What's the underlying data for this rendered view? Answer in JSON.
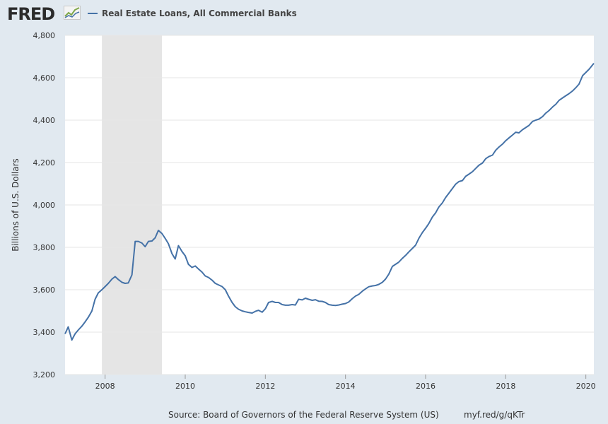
{
  "header": {
    "logo_text": "FRED",
    "logo_icon": "line-graph-icon",
    "series_title": "Real Estate Loans, All Commercial Banks"
  },
  "colors": {
    "line": "#4572a7",
    "recession": "#e5e5e5",
    "background": "#e1e9f0",
    "plot": "#ffffff",
    "grid": "#e6e6e6"
  },
  "footer": {
    "source": "Source: Board of Governors of the Federal Reserve System (US)",
    "shortlink": "myf.red/g/qKTr"
  },
  "chart_data": {
    "type": "line",
    "title": "Real Estate Loans, All Commercial Banks",
    "xlabel": "",
    "ylabel": "Billions of U.S. Dollars",
    "xlim": [
      2007.0,
      2020.2
    ],
    "ylim": [
      3200,
      4800
    ],
    "xticks": [
      2008,
      2010,
      2012,
      2014,
      2016,
      2018,
      2020
    ],
    "xtick_labels": [
      "2008",
      "2010",
      "2012",
      "2014",
      "2016",
      "2018",
      "2020"
    ],
    "yticks": [
      3200,
      3400,
      3600,
      3800,
      4000,
      4200,
      4400,
      4600,
      4800
    ],
    "ytick_labels": [
      "3,200",
      "3,400",
      "3,600",
      "3,800",
      "4,000",
      "4,200",
      "4,400",
      "4,600",
      "4,800"
    ],
    "grid": true,
    "legend": "top-left",
    "recessions": [
      [
        2007.92,
        2009.42
      ]
    ],
    "series": [
      {
        "name": "Real Estate Loans, All Commercial Banks",
        "x": [
          2007.0,
          2007.08,
          2007.17,
          2007.25,
          2007.33,
          2007.42,
          2007.5,
          2007.58,
          2007.67,
          2007.75,
          2007.83,
          2007.92,
          2008.0,
          2008.08,
          2008.17,
          2008.25,
          2008.33,
          2008.42,
          2008.5,
          2008.58,
          2008.67,
          2008.75,
          2008.83,
          2008.92,
          2009.0,
          2009.08,
          2009.17,
          2009.25,
          2009.33,
          2009.42,
          2009.5,
          2009.58,
          2009.67,
          2009.75,
          2009.83,
          2009.92,
          2010.0,
          2010.08,
          2010.17,
          2010.25,
          2010.33,
          2010.42,
          2010.5,
          2010.58,
          2010.67,
          2010.75,
          2010.83,
          2010.92,
          2011.0,
          2011.08,
          2011.17,
          2011.25,
          2011.33,
          2011.42,
          2011.5,
          2011.58,
          2011.67,
          2011.75,
          2011.83,
          2011.92,
          2012.0,
          2012.08,
          2012.17,
          2012.25,
          2012.33,
          2012.42,
          2012.5,
          2012.58,
          2012.67,
          2012.75,
          2012.83,
          2012.92,
          2013.0,
          2013.08,
          2013.17,
          2013.25,
          2013.33,
          2013.42,
          2013.5,
          2013.58,
          2013.67,
          2013.75,
          2013.83,
          2013.92,
          2014.0,
          2014.08,
          2014.17,
          2014.25,
          2014.33,
          2014.42,
          2014.5,
          2014.58,
          2014.67,
          2014.75,
          2014.83,
          2014.92,
          2015.0,
          2015.08,
          2015.17,
          2015.25,
          2015.33,
          2015.42,
          2015.5,
          2015.58,
          2015.67,
          2015.75,
          2015.83,
          2015.92,
          2016.0,
          2016.08,
          2016.17,
          2016.25,
          2016.33,
          2016.42,
          2016.5,
          2016.58,
          2016.67,
          2016.75,
          2016.83,
          2016.92,
          2017.0,
          2017.08,
          2017.17,
          2017.25,
          2017.33,
          2017.42,
          2017.5,
          2017.58,
          2017.67,
          2017.75,
          2017.83,
          2017.92,
          2018.0,
          2018.08,
          2018.17,
          2018.25,
          2018.33,
          2018.42,
          2018.5,
          2018.58,
          2018.67,
          2018.75,
          2018.83,
          2018.92,
          2019.0,
          2019.08,
          2019.17,
          2019.25,
          2019.33,
          2019.42,
          2019.5,
          2019.58,
          2019.67,
          2019.75,
          2019.83,
          2019.92,
          2020.0,
          2020.08,
          2020.2
        ],
        "values": [
          3392,
          3425,
          3363,
          3392,
          3410,
          3428,
          3448,
          3470,
          3500,
          3555,
          3585,
          3600,
          3615,
          3630,
          3650,
          3662,
          3648,
          3635,
          3630,
          3632,
          3670,
          3828,
          3828,
          3820,
          3803,
          3828,
          3830,
          3845,
          3880,
          3865,
          3842,
          3817,
          3770,
          3745,
          3808,
          3780,
          3760,
          3720,
          3705,
          3712,
          3698,
          3683,
          3665,
          3658,
          3645,
          3630,
          3623,
          3615,
          3600,
          3570,
          3540,
          3520,
          3508,
          3500,
          3496,
          3493,
          3490,
          3498,
          3503,
          3494,
          3510,
          3540,
          3545,
          3540,
          3540,
          3530,
          3527,
          3527,
          3530,
          3528,
          3555,
          3552,
          3560,
          3555,
          3550,
          3553,
          3546,
          3545,
          3540,
          3530,
          3527,
          3526,
          3528,
          3532,
          3535,
          3542,
          3558,
          3570,
          3578,
          3593,
          3604,
          3614,
          3618,
          3620,
          3625,
          3635,
          3650,
          3673,
          3710,
          3720,
          3730,
          3748,
          3762,
          3778,
          3795,
          3810,
          3842,
          3870,
          3890,
          3912,
          3943,
          3963,
          3990,
          4010,
          4035,
          4055,
          4078,
          4098,
          4110,
          4115,
          4135,
          4145,
          4157,
          4172,
          4187,
          4198,
          4218,
          4228,
          4235,
          4258,
          4273,
          4287,
          4303,
          4316,
          4330,
          4343,
          4340,
          4355,
          4365,
          4375,
          4394,
          4400,
          4405,
          4417,
          4433,
          4445,
          4462,
          4475,
          4493,
          4505,
          4515,
          4525,
          4538,
          4553,
          4570,
          4610,
          4625,
          4640,
          4668
        ]
      }
    ]
  }
}
